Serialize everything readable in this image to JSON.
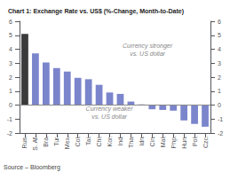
{
  "chart_data": {
    "type": "bar",
    "title": "Chart 1: Exchange Rate vs. US$ (%-Change, Month-to-Date)",
    "categories": [
      "Rus.",
      "S. Af.",
      "Bra.",
      "Tur.",
      "Mex.",
      "Col.",
      "Tai.",
      "Chi.",
      "Kor.",
      "Ind.",
      "Tha.",
      "Idn.",
      "Cin.",
      "Mal.",
      "Php.",
      "Hun.",
      "Pol.",
      "Czc."
    ],
    "values": [
      5.1,
      3.7,
      3.05,
      2.65,
      2.4,
      1.95,
      1.85,
      1.45,
      0.9,
      0.8,
      0.25,
      0.05,
      -0.3,
      -0.35,
      -0.4,
      -1.1,
      -1.35,
      -1.55
    ],
    "colors": [
      "#3a3a3a",
      "#7b85cc",
      "#7b85cc",
      "#7b85cc",
      "#7b85cc",
      "#7b85cc",
      "#7b85cc",
      "#7b85cc",
      "#7b85cc",
      "#7b85cc",
      "#7b85cc",
      "#7b85cc",
      "#7b85cc",
      "#7b85cc",
      "#7b85cc",
      "#7b85cc",
      "#7b85cc",
      "#7b85cc"
    ],
    "ylim": [
      -2,
      6
    ],
    "yticks": [
      -2,
      -1,
      0,
      1,
      2,
      3,
      4,
      5,
      6
    ],
    "annotations": [
      "Currency stronger\nvs. US dollar",
      "Currency weaker\nvs. US dollar",
      "Source – Bloomberg"
    ],
    "grid": false
  }
}
